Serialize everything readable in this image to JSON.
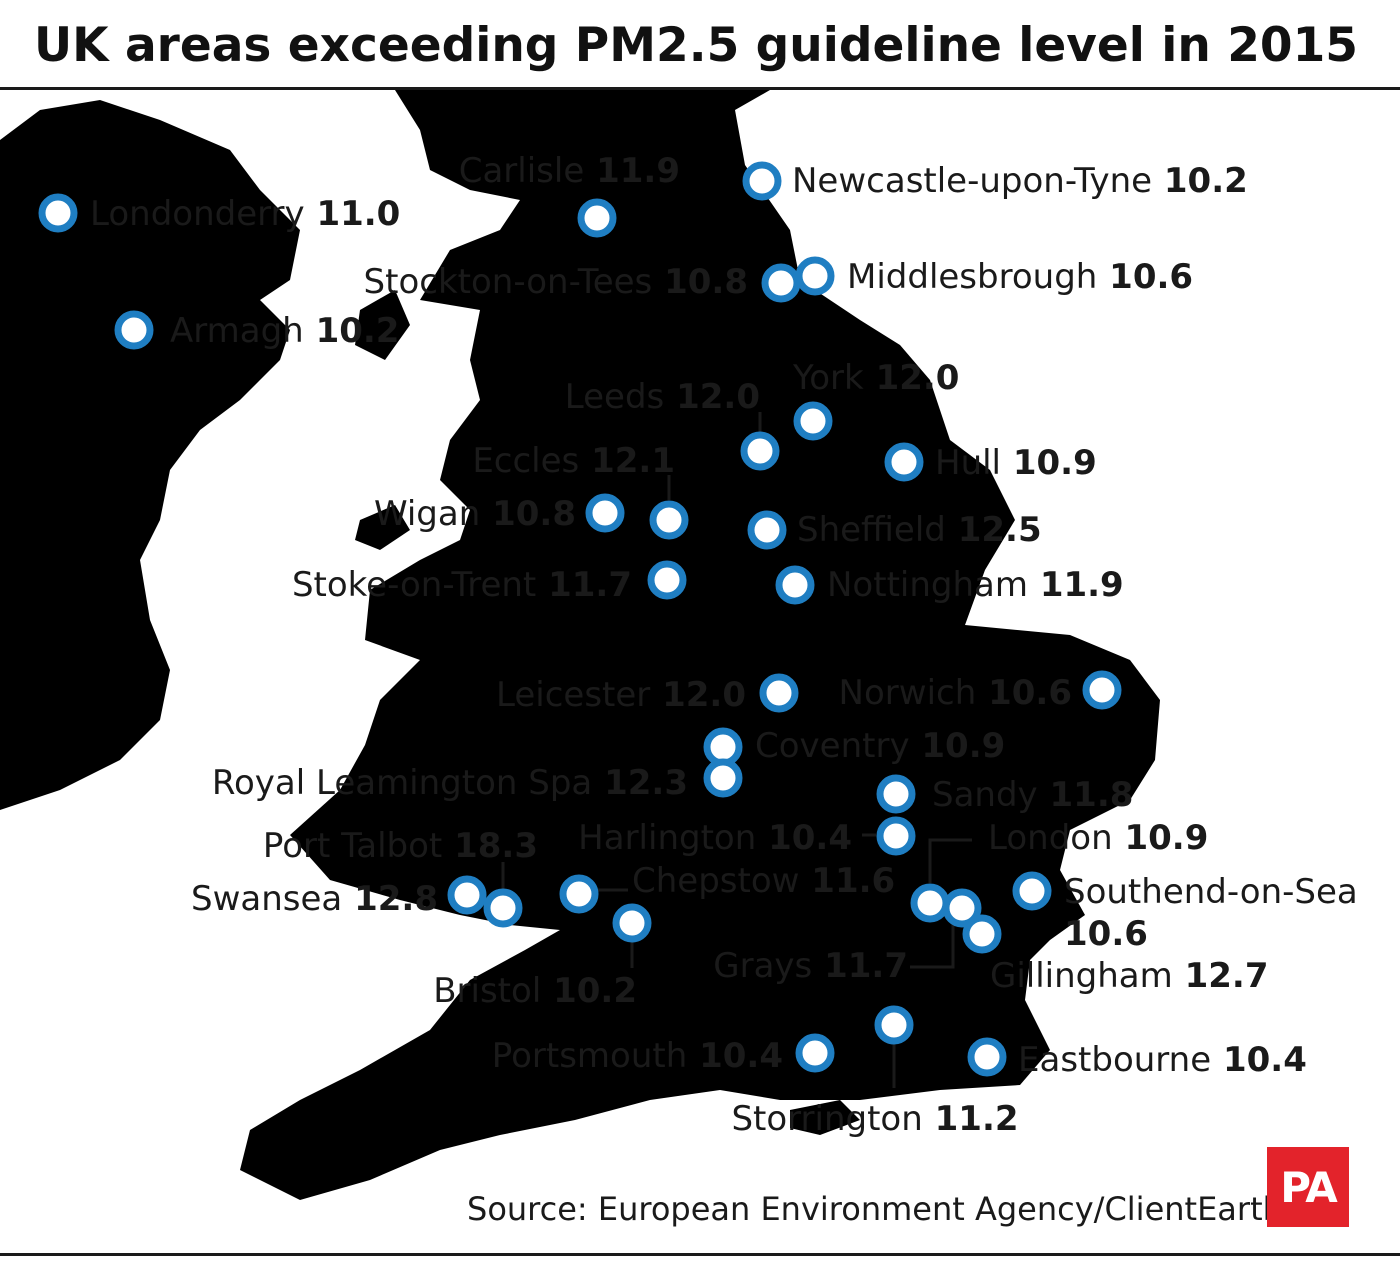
{
  "title": "UK areas exceeding PM2.5 guideline level in 2015",
  "source": "Source: European Environment Agency/ClientEarth",
  "logo_text": "PA",
  "colors": {
    "land": "#d5d8e5",
    "sea": "#ffffff",
    "marker_stroke": "#1f7ec2",
    "text": "#1a1a1a",
    "logo_bg": "#e3232b"
  },
  "units": "PM2.5 annual mean (µg/m³)",
  "cities": [
    {
      "name": "Londonderry",
      "value": "11.0",
      "lat": 55.0,
      "lon": -7.32
    },
    {
      "name": "Armagh",
      "value": "10.2",
      "lat": 54.35,
      "lon": -6.65
    },
    {
      "name": "Carlisle",
      "value": "11.9",
      "lat": 54.89,
      "lon": -2.93
    },
    {
      "name": "Newcastle-upon-Tyne",
      "value": "10.2",
      "lat": 54.97,
      "lon": -1.61
    },
    {
      "name": "Stockton-on-Tees",
      "value": "10.8",
      "lat": 54.57,
      "lon": -1.32
    },
    {
      "name": "Middlesbrough",
      "value": "10.6",
      "lat": 54.58,
      "lon": -1.23
    },
    {
      "name": "Leeds",
      "value": "12.0",
      "lat": 53.8,
      "lon": -1.55
    },
    {
      "name": "York",
      "value": "12.0",
      "lat": 53.96,
      "lon": -1.08
    },
    {
      "name": "Eccles",
      "value": "12.1",
      "lat": 53.48,
      "lon": -2.33
    },
    {
      "name": "Hull",
      "value": "10.9",
      "lat": 53.74,
      "lon": -0.33
    },
    {
      "name": "Wigan",
      "value": "10.8",
      "lat": 53.55,
      "lon": -2.63
    },
    {
      "name": "Sheffield",
      "value": "12.5",
      "lat": 53.38,
      "lon": -1.47
    },
    {
      "name": "Stoke-on-Trent",
      "value": "11.7",
      "lat": 53.0,
      "lon": -2.18
    },
    {
      "name": "Nottingham",
      "value": "11.9",
      "lat": 52.95,
      "lon": -1.15
    },
    {
      "name": "Leicester",
      "value": "12.0",
      "lat": 52.64,
      "lon": -1.13
    },
    {
      "name": "Norwich",
      "value": "10.6",
      "lat": 52.63,
      "lon": 1.3
    },
    {
      "name": "Coventry",
      "value": "10.9",
      "lat": 52.41,
      "lon": -1.51
    },
    {
      "name": "Royal Leamington Spa",
      "value": "12.3",
      "lat": 52.29,
      "lon": -1.54
    },
    {
      "name": "Sandy",
      "value": "11.8",
      "lat": 52.13,
      "lon": -0.3
    },
    {
      "name": "Harlington",
      "value": "10.4",
      "lat": 51.49,
      "lon": -0.44
    },
    {
      "name": "London",
      "value": "10.9",
      "lat": 51.51,
      "lon": -0.13
    },
    {
      "name": "Port Talbot",
      "value": "18.3",
      "lat": 51.59,
      "lon": -3.78
    },
    {
      "name": "Swansea",
      "value": "12.8",
      "lat": 51.62,
      "lon": -3.94
    },
    {
      "name": "Chepstow",
      "value": "11.6",
      "lat": 51.64,
      "lon": -2.67
    },
    {
      "name": "Southend-on-Sea",
      "value": "10.6",
      "lat": 51.54,
      "lon": 0.71
    },
    {
      "name": "Bristol",
      "value": "10.2",
      "lat": 51.45,
      "lon": -2.59
    },
    {
      "name": "Grays",
      "value": "11.7",
      "lat": 51.48,
      "lon": 0.33
    },
    {
      "name": "Gillingham",
      "value": "12.7",
      "lat": 51.39,
      "lon": 0.55
    },
    {
      "name": "Portsmouth",
      "value": "10.4",
      "lat": 50.8,
      "lon": -1.09
    },
    {
      "name": "Storrington",
      "value": "11.2",
      "lat": 50.92,
      "lon": -0.45
    },
    {
      "name": "Eastbourne",
      "value": "10.4",
      "lat": 50.77,
      "lon": 0.28
    }
  ]
}
